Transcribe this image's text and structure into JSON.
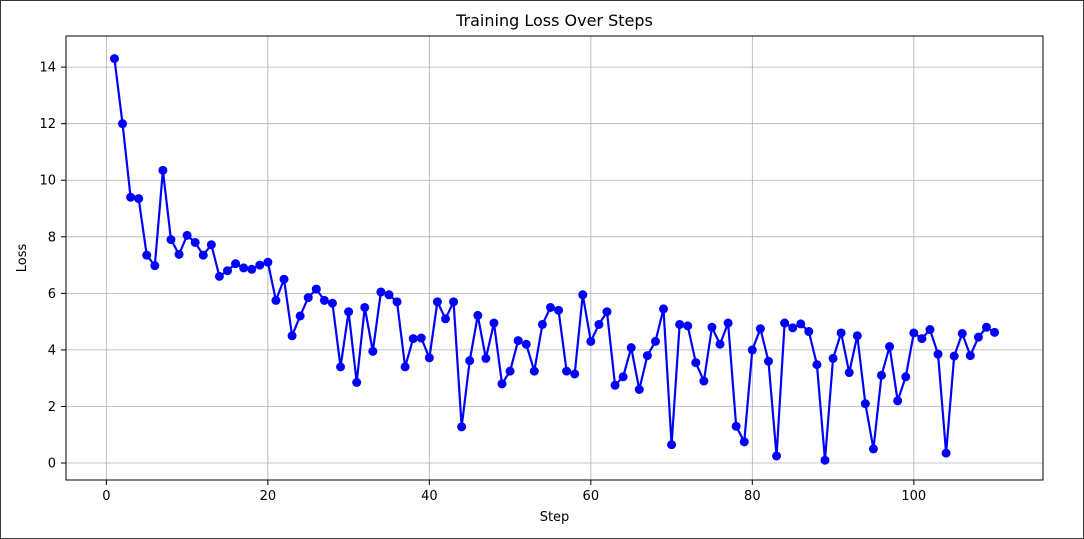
{
  "chart_data": {
    "type": "line",
    "title": "Training Loss Over Steps",
    "xlabel": "Step",
    "ylabel": "Loss",
    "xlim": [
      -5,
      116
    ],
    "ylim": [
      -0.6,
      15.1
    ],
    "xticks": [
      0,
      20,
      40,
      60,
      80,
      100
    ],
    "yticks": [
      0,
      2,
      4,
      6,
      8,
      10,
      12,
      14
    ],
    "grid": true,
    "colors": {
      "line": "#0000ff",
      "grid": "#b0b0b0",
      "axis": "#000000"
    },
    "series": [
      {
        "marker": "circle",
        "x": [
          1,
          2,
          3,
          4,
          5,
          6,
          7,
          8,
          9,
          10,
          11,
          12,
          13,
          14,
          15,
          16,
          17,
          18,
          19,
          20,
          21,
          22,
          23,
          24,
          25,
          26,
          27,
          28,
          29,
          30,
          31,
          32,
          33,
          34,
          35,
          36,
          37,
          38,
          39,
          40,
          41,
          42,
          43,
          44,
          45,
          46,
          47,
          48,
          49,
          50,
          51,
          52,
          53,
          54,
          55,
          56,
          57,
          58,
          59,
          60,
          61,
          62,
          63,
          64,
          65,
          66,
          67,
          68,
          69,
          70,
          71,
          72,
          73,
          74,
          75,
          76,
          77,
          78,
          79,
          80,
          81,
          82,
          83,
          84,
          85,
          86,
          87,
          88,
          89,
          90,
          91,
          92,
          93,
          94,
          95,
          96,
          97,
          98,
          99,
          100,
          101,
          102,
          103,
          104,
          105,
          106,
          107,
          108,
          109,
          110
        ],
        "values": [
          14.3,
          12.0,
          9.4,
          9.35,
          7.35,
          6.98,
          10.35,
          7.9,
          7.38,
          8.05,
          7.8,
          7.35,
          7.72,
          6.6,
          6.8,
          7.05,
          6.9,
          6.85,
          7.0,
          7.1,
          5.75,
          6.5,
          4.5,
          5.2,
          5.85,
          6.15,
          5.75,
          5.65,
          3.4,
          5.35,
          2.85,
          5.5,
          3.95,
          6.05,
          5.95,
          5.7,
          3.4,
          4.4,
          4.42,
          3.72,
          5.7,
          5.1,
          5.7,
          1.28,
          3.62,
          5.22,
          3.7,
          4.95,
          2.8,
          3.25,
          4.33,
          4.2,
          3.25,
          4.9,
          5.5,
          5.4,
          3.25,
          3.15,
          5.95,
          4.3,
          4.9,
          5.35,
          2.75,
          3.05,
          4.08,
          2.6,
          3.8,
          4.3,
          5.45,
          0.65,
          4.9,
          4.85,
          3.55,
          2.9,
          4.8,
          4.2,
          4.95,
          1.3,
          0.75,
          4.0,
          4.75,
          3.6,
          0.25,
          4.95,
          4.78,
          4.92,
          4.65,
          3.48,
          0.1,
          3.7,
          4.6,
          3.2,
          4.5,
          2.1,
          0.5,
          3.1,
          4.12,
          2.2,
          3.05,
          4.6,
          4.4,
          4.72,
          3.85,
          0.35,
          3.78,
          4.58,
          3.8,
          4.45,
          4.8,
          4.62
        ]
      }
    ]
  }
}
